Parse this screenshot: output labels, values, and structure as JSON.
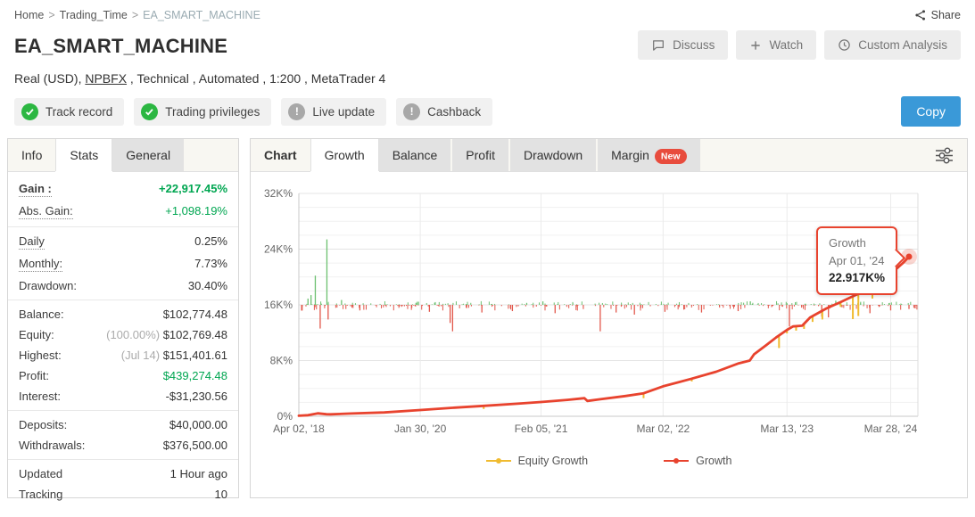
{
  "breadcrumb": {
    "items": [
      "Home",
      "Trading_Time",
      "EA_SMART_MACHINE"
    ],
    "separator": ">"
  },
  "topbar": {
    "share_label": "Share"
  },
  "header": {
    "title": "EA_SMART_MACHINE",
    "buttons": [
      {
        "label": "Discuss",
        "icon": "chat-icon"
      },
      {
        "label": "Watch",
        "icon": "plus-icon"
      },
      {
        "label": "Custom Analysis",
        "icon": "clock-icon"
      }
    ],
    "subtitle": {
      "prefix": "Real (USD), ",
      "link": "NPBFX",
      "suffix": " , Technical , Automated , 1:200 , MetaTrader 4"
    },
    "badges": [
      {
        "label": "Track record",
        "status": "ok"
      },
      {
        "label": "Trading privileges",
        "status": "ok"
      },
      {
        "label": "Live update",
        "status": "warn"
      },
      {
        "label": "Cashback",
        "status": "warn"
      }
    ],
    "copy_label": "Copy"
  },
  "sidebar": {
    "tabs": [
      {
        "label": "Info",
        "kind": "plain"
      },
      {
        "label": "Stats",
        "kind": "active"
      },
      {
        "label": "General",
        "kind": "gray"
      }
    ],
    "groups": [
      [
        {
          "label": "Gain :",
          "value": "+22,917.45%",
          "green": true,
          "bold": true,
          "dotted": true
        },
        {
          "label": "Abs. Gain:",
          "value": "+1,098.19%",
          "green": true,
          "dotted": true
        }
      ],
      [
        {
          "label": "Daily",
          "value": "0.25%",
          "dotted": true
        },
        {
          "label": "Monthly:",
          "value": "7.73%",
          "dotted": true
        },
        {
          "label": "Drawdown:",
          "value": "30.40%"
        }
      ],
      [
        {
          "label": "Balance:",
          "value": "$102,774.48"
        },
        {
          "label": "Equity:",
          "prefix": "(100.00%) ",
          "value": "$102,769.48"
        },
        {
          "label": "Highest:",
          "prefix": "(Jul 14) ",
          "value": "$151,401.61"
        },
        {
          "label": "Profit:",
          "value": "$439,274.48",
          "green": true
        },
        {
          "label": "Interest:",
          "value": "-$31,230.56"
        }
      ],
      [
        {
          "label": "Deposits:",
          "value": "$40,000.00"
        },
        {
          "label": "Withdrawals:",
          "value": "$376,500.00"
        }
      ],
      [
        {
          "label": "Updated",
          "value": "1 Hour ago"
        },
        {
          "label": "Tracking",
          "value": "10"
        }
      ]
    ]
  },
  "chart_tabs": [
    {
      "label": "Chart",
      "kind": "label"
    },
    {
      "label": "Growth",
      "kind": "active"
    },
    {
      "label": "Balance",
      "kind": "gray"
    },
    {
      "label": "Profit",
      "kind": "gray"
    },
    {
      "label": "Drawdown",
      "kind": "gray"
    },
    {
      "label": "Margin",
      "kind": "gray",
      "badge": "New"
    }
  ],
  "chart_data": {
    "type": "line",
    "title": "Growth",
    "ylim": [
      0,
      32
    ],
    "y_ticks": [
      {
        "v": 0,
        "label": "0%"
      },
      {
        "v": 8,
        "label": "8K%"
      },
      {
        "v": 16,
        "label": "16K%"
      },
      {
        "v": 24,
        "label": "24K%"
      },
      {
        "v": 32,
        "label": "32K%"
      }
    ],
    "x_ticks": [
      {
        "t": 0.0,
        "label": "Apr 02, '18"
      },
      {
        "t": 0.199,
        "label": "Jan 30, '20"
      },
      {
        "t": 0.397,
        "label": "Feb 05, '21"
      },
      {
        "t": 0.597,
        "label": "Mar 02, '22"
      },
      {
        "t": 0.8,
        "label": "Mar 13, '23"
      },
      {
        "t": 0.97,
        "label": "Mar 28, '24"
      }
    ],
    "series": {
      "growth": {
        "name": "Growth",
        "color": "#e8432e",
        "units": "K%",
        "points": [
          [
            0.0,
            0.08
          ],
          [
            0.015,
            0.15
          ],
          [
            0.031,
            0.42
          ],
          [
            0.045,
            0.3
          ],
          [
            0.052,
            0.28
          ],
          [
            0.086,
            0.4
          ],
          [
            0.14,
            0.55
          ],
          [
            0.199,
            0.9
          ],
          [
            0.249,
            1.2
          ],
          [
            0.303,
            1.5
          ],
          [
            0.358,
            1.8
          ],
          [
            0.397,
            2.05
          ],
          [
            0.44,
            2.35
          ],
          [
            0.468,
            2.6
          ],
          [
            0.473,
            2.2
          ],
          [
            0.494,
            2.45
          ],
          [
            0.535,
            2.9
          ],
          [
            0.565,
            3.3
          ],
          [
            0.597,
            4.3
          ],
          [
            0.644,
            5.4
          ],
          [
            0.684,
            6.4
          ],
          [
            0.721,
            7.6
          ],
          [
            0.739,
            8.0
          ],
          [
            0.746,
            8.9
          ],
          [
            0.766,
            10.2
          ],
          [
            0.782,
            11.3
          ],
          [
            0.8,
            12.4
          ],
          [
            0.81,
            12.9
          ],
          [
            0.825,
            13.0
          ],
          [
            0.838,
            14.2
          ],
          [
            0.865,
            15.5
          ],
          [
            0.888,
            16.4
          ],
          [
            0.912,
            17.4
          ],
          [
            0.933,
            18.2
          ],
          [
            0.957,
            19.6
          ],
          [
            0.977,
            21.0
          ],
          [
            0.99,
            22.0
          ],
          [
            1.0,
            22.917
          ]
        ]
      },
      "equity": {
        "name": "Equity Growth",
        "color": "#f0bb30",
        "dips": [
          [
            0.303,
            1.05
          ],
          [
            0.565,
            2.6
          ],
          [
            0.644,
            5.0
          ],
          [
            0.787,
            9.8
          ],
          [
            0.8,
            11.9
          ],
          [
            0.815,
            12.3
          ],
          [
            0.828,
            12.55
          ],
          [
            0.842,
            13.55
          ],
          [
            0.858,
            13.9
          ],
          [
            0.888,
            15.7
          ],
          [
            0.908,
            13.95
          ],
          [
            0.917,
            14.4
          ],
          [
            0.94,
            16.9
          ],
          [
            0.962,
            18.6
          ]
        ]
      }
    },
    "band": {
      "baseline": 16,
      "colors": {
        "up": "#6cc070",
        "down": "#e2574b"
      },
      "minor": {
        "seed": 2024,
        "count": 340,
        "up_ratio": 0.42,
        "up_max": 0.45,
        "down_max": 0.75,
        "t_max": 1.015
      },
      "green_spikes": [
        [
          0.015,
          16.9
        ],
        [
          0.02,
          17.4
        ],
        [
          0.027,
          20.2
        ],
        [
          0.046,
          25.4
        ],
        [
          0.07,
          16.7
        ],
        [
          0.4,
          16.5
        ],
        [
          0.74,
          16.5
        ],
        [
          0.88,
          16.6
        ]
      ],
      "red_spikes": [
        [
          0.035,
          12.6
        ],
        [
          0.048,
          13.9
        ],
        [
          0.1,
          15.2
        ],
        [
          0.214,
          15.0
        ],
        [
          0.248,
          13.4
        ],
        [
          0.252,
          12.2
        ],
        [
          0.3,
          14.9
        ],
        [
          0.35,
          15.1
        ],
        [
          0.42,
          14.8
        ],
        [
          0.494,
          12.2
        ],
        [
          0.52,
          14.9
        ],
        [
          0.55,
          14.6
        ],
        [
          0.6,
          15.0
        ],
        [
          0.66,
          14.9
        ],
        [
          0.72,
          15.1
        ],
        [
          0.804,
          12.9
        ],
        [
          0.857,
          14.3
        ],
        [
          0.868,
          14.2
        ],
        [
          0.936,
          14.8
        ],
        [
          0.97,
          15.2
        ],
        [
          1.0,
          15.4
        ],
        [
          1.01,
          15.5
        ]
      ]
    },
    "legend": [
      {
        "label": "Equity Growth",
        "color": "#f0bb30"
      },
      {
        "label": "Growth",
        "color": "#e8432e"
      }
    ],
    "tooltip": {
      "series": "Growth",
      "date": "Apr 01, '24",
      "value": "22.917K%",
      "point": {
        "t": 1.0,
        "v": 22.917
      }
    },
    "grid": true,
    "legend_position": "bottom"
  }
}
